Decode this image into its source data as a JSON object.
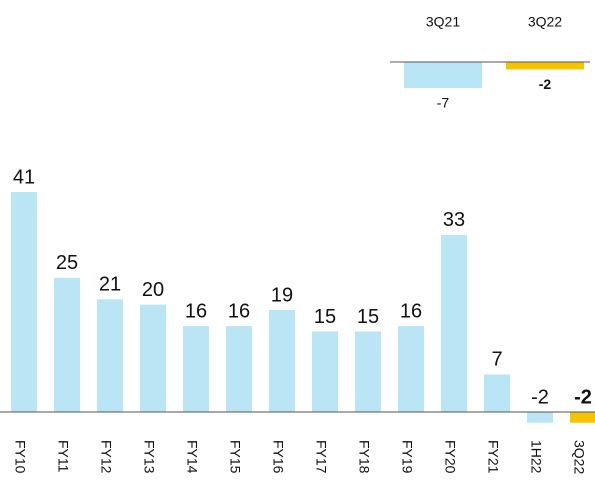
{
  "chart_data": [
    {
      "type": "bar",
      "categories": [
        "FY10",
        "FY11",
        "FY12",
        "FY13",
        "FY14",
        "FY15",
        "FY16",
        "FY17",
        "FY18",
        "FY19",
        "FY20",
        "FY21",
        "1H22",
        "3Q22"
      ],
      "values": [
        41,
        25,
        21,
        20,
        16,
        16,
        19,
        15,
        15,
        16,
        33,
        7,
        -2,
        -2
      ],
      "colors": [
        "#b9e5f5",
        "#b9e5f5",
        "#b9e5f5",
        "#b9e5f5",
        "#b9e5f5",
        "#b9e5f5",
        "#b9e5f5",
        "#b9e5f5",
        "#b9e5f5",
        "#b9e5f5",
        "#b9e5f5",
        "#b9e5f5",
        "#b9e5f5",
        "#f5c400"
      ],
      "ylim": [
        -3,
        41
      ]
    },
    {
      "type": "bar",
      "categories": [
        "3Q21",
        "3Q22"
      ],
      "values": [
        -7,
        -2
      ],
      "colors": [
        "#b9e5f5",
        "#f5c400"
      ],
      "ylim": [
        -7,
        0
      ]
    }
  ]
}
